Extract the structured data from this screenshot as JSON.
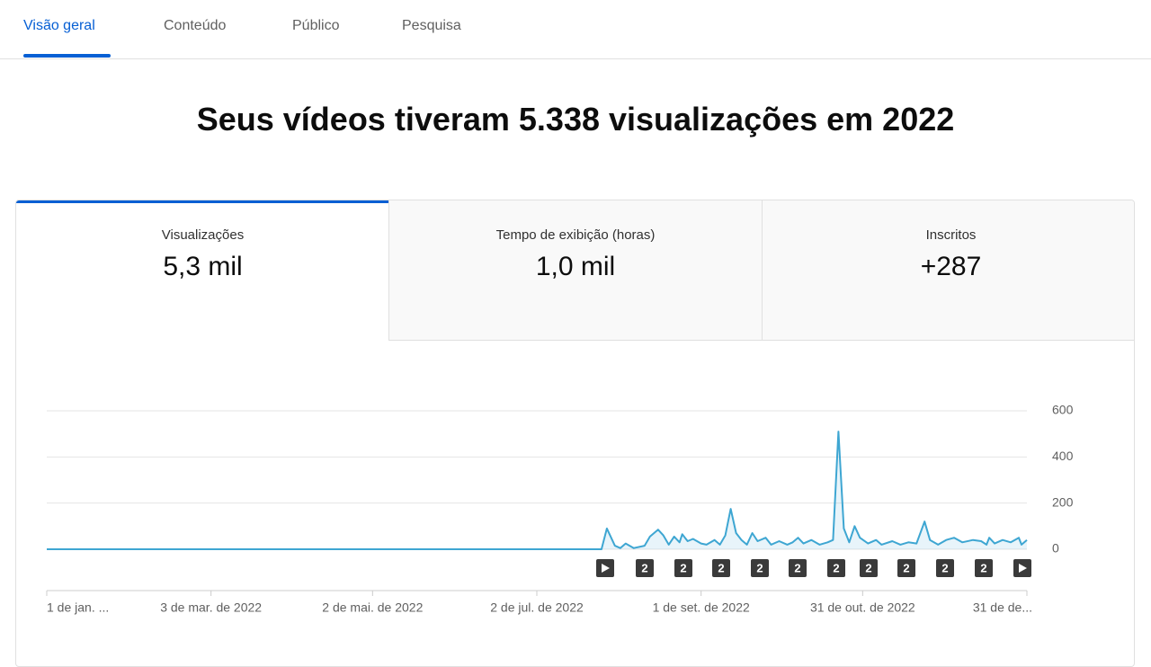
{
  "tabs": [
    "Visão geral",
    "Conteúdo",
    "Público",
    "Pesquisa"
  ],
  "headline": "Seus vídeos tiveram 5.338 visualizações em 2022",
  "metrics": [
    {
      "label": "Visualizações",
      "value": "5,3 mil"
    },
    {
      "label": "Tempo de exibição (horas)",
      "value": "1,0 mil"
    },
    {
      "label": "Inscritos",
      "value": "+287"
    }
  ],
  "markers": [
    "2",
    "2",
    "2",
    "2",
    "2",
    "2",
    "2",
    "2",
    "2",
    "2"
  ],
  "chart_data": {
    "type": "line",
    "color": "#3ea6d2",
    "grid": true,
    "xlim": [
      "2022-01-01",
      "2022-12-31"
    ],
    "xticks": [
      {
        "value": "2022-01-01",
        "label": "1 de jan. ..."
      },
      {
        "value": "2022-03-03",
        "label": "3 de mar. de 2022"
      },
      {
        "value": "2022-05-02",
        "label": "2 de mai. de 2022"
      },
      {
        "value": "2022-07-02",
        "label": "2 de jul. de 2022"
      },
      {
        "value": "2022-09-01",
        "label": "1 de set. de 2022"
      },
      {
        "value": "2022-10-31",
        "label": "31 de out. de 2022"
      },
      {
        "value": "2022-12-31",
        "label": "31 de de..."
      }
    ],
    "ylim": [
      0,
      600
    ],
    "yticks": [
      0,
      200,
      400,
      600
    ],
    "x": [
      "2022-01-01",
      "2022-07-26",
      "2022-07-28",
      "2022-07-31",
      "2022-08-02",
      "2022-08-04",
      "2022-08-07",
      "2022-08-11",
      "2022-08-13",
      "2022-08-16",
      "2022-08-18",
      "2022-08-20",
      "2022-08-22",
      "2022-08-24",
      "2022-08-25",
      "2022-08-27",
      "2022-08-29",
      "2022-09-01",
      "2022-09-03",
      "2022-09-06",
      "2022-09-08",
      "2022-09-10",
      "2022-09-12",
      "2022-09-14",
      "2022-09-16",
      "2022-09-18",
      "2022-09-20",
      "2022-09-22",
      "2022-09-25",
      "2022-09-27",
      "2022-09-30",
      "2022-10-03",
      "2022-10-05",
      "2022-10-07",
      "2022-10-09",
      "2022-10-12",
      "2022-10-15",
      "2022-10-18",
      "2022-10-20",
      "2022-10-22",
      "2022-10-24",
      "2022-10-26",
      "2022-10-28",
      "2022-10-30",
      "2022-11-02",
      "2022-11-05",
      "2022-11-07",
      "2022-11-11",
      "2022-11-14",
      "2022-11-17",
      "2022-11-20",
      "2022-11-23",
      "2022-11-25",
      "2022-11-28",
      "2022-12-01",
      "2022-12-04",
      "2022-12-07",
      "2022-12-11",
      "2022-12-14",
      "2022-12-16",
      "2022-12-17",
      "2022-12-19",
      "2022-12-22",
      "2022-12-25",
      "2022-12-28",
      "2022-12-29",
      "2022-12-31"
    ],
    "values": [
      0,
      0,
      90,
      15,
      5,
      25,
      5,
      15,
      55,
      85,
      60,
      20,
      55,
      30,
      65,
      35,
      45,
      25,
      20,
      40,
      20,
      60,
      175,
      70,
      40,
      20,
      70,
      35,
      50,
      20,
      35,
      20,
      30,
      50,
      25,
      40,
      20,
      30,
      40,
      510,
      90,
      30,
      100,
      50,
      25,
      40,
      20,
      35,
      20,
      30,
      25,
      120,
      40,
      20,
      40,
      50,
      30,
      40,
      35,
      20,
      50,
      25,
      40,
      30,
      50,
      20,
      40
    ]
  }
}
